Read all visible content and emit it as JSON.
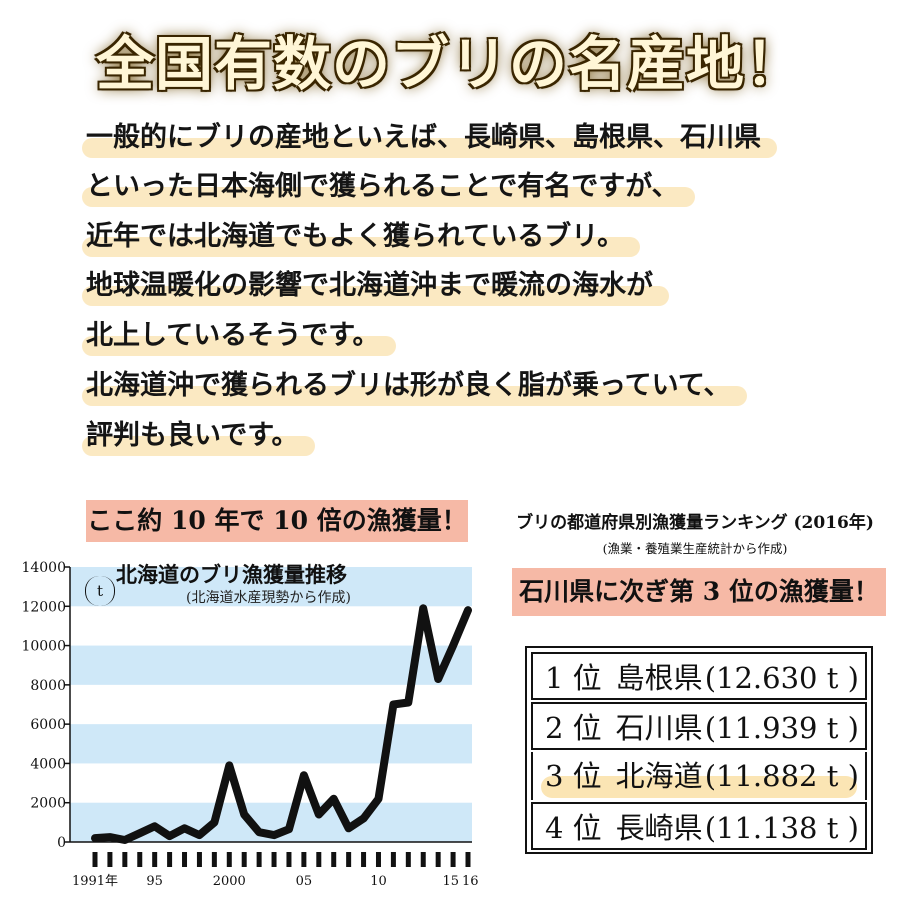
{
  "headline": "全国有数のブリの名産地！",
  "paragraph": [
    "一般的にブリの産地といえば、長崎県、島根県、石川県",
    "といった日本海側で獲られることで有名ですが、",
    "近年では北海道でもよく獲られているブリ。",
    "地球温暖化の影響で北海道沖まで暖流の海水が",
    "北上しているそうです。",
    "北海道沖で獲られるブリは形が良く脂が乗っていて、",
    "評判も良いです。"
  ],
  "left_badge": "ここ約 10 年で 10 倍の漁獲量！",
  "ranking": {
    "title": "ブリの都道府県別漁獲量ランキング (2016年)",
    "subtitle": "(漁業・養殖業生産統計から作成)",
    "badge": "石川県に次ぎ第 3 位の漁獲量！",
    "rows": [
      {
        "place": "1 位",
        "pref": "島根県",
        "value": "(12.630 t )"
      },
      {
        "place": "2 位",
        "pref": "石川県",
        "value": "(11.939 t )"
      },
      {
        "place": "3 位",
        "pref": "北海道",
        "value": "(11.882 t )"
      },
      {
        "place": "4 位",
        "pref": "長崎県",
        "value": "(11.138 t )"
      }
    ],
    "highlight_color": "#fbe5b4"
  },
  "chart_data": {
    "type": "line",
    "title": "北海道のブリ漁獲量推移",
    "subtitle": "(北海道水産現勢から作成)",
    "ylabel": "t",
    "xlabel": "",
    "ylim": [
      0,
      14000
    ],
    "yticks": [
      0,
      2000,
      4000,
      6000,
      8000,
      10000,
      12000,
      14000
    ],
    "xtick_labels": [
      {
        "year": 1991,
        "label": "1991年"
      },
      {
        "year": 1995,
        "label": "95"
      },
      {
        "year": 2000,
        "label": "2000"
      },
      {
        "year": 2005,
        "label": "05"
      },
      {
        "year": 2010,
        "label": "10"
      },
      {
        "year": 2015,
        "label": "15"
      },
      {
        "year": 2016,
        "label": "16"
      }
    ],
    "x": [
      1991,
      1992,
      1993,
      1994,
      1995,
      1996,
      1997,
      1998,
      1999,
      2000,
      2001,
      2002,
      2003,
      2004,
      2005,
      2006,
      2007,
      2008,
      2009,
      2010,
      2011,
      2012,
      2013,
      2014,
      2015,
      2016
    ],
    "series": [
      {
        "values": [
          200,
          250,
          100,
          450,
          800,
          300,
          700,
          350,
          1000,
          3900,
          1400,
          500,
          350,
          650,
          3400,
          1400,
          2200,
          700,
          1200,
          2200,
          7000,
          7100,
          11900,
          8300,
          10000,
          11800
        ]
      }
    ],
    "grid": "horizontal bands",
    "band_color": "#cfe8f8",
    "line_color": "#111111"
  }
}
